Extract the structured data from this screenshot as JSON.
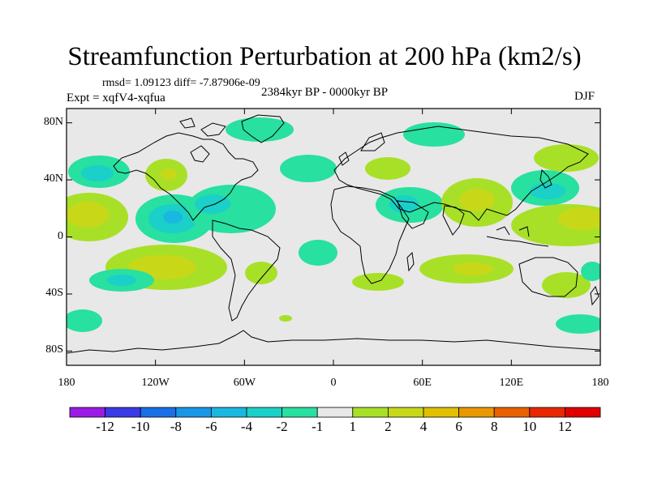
{
  "title": "Streamfunction Perturbation at 200 hPa (km2/s)",
  "stats": "rmsd= 1.09123 diff= -7.87906e-09",
  "expt": "Expt = xqfV4-xqfua",
  "period": "2384kyr BP - 0000kyr BP",
  "season": "DJF",
  "lat_ticks": [
    {
      "label": "80N",
      "value": 80
    },
    {
      "label": "40N",
      "value": 40
    },
    {
      "label": "0",
      "value": 0
    },
    {
      "label": "40S",
      "value": -40
    },
    {
      "label": "80S",
      "value": -80
    }
  ],
  "lon_ticks": [
    {
      "label": "180",
      "value": -180
    },
    {
      "label": "120W",
      "value": -120
    },
    {
      "label": "60W",
      "value": -60
    },
    {
      "label": "0",
      "value": 0
    },
    {
      "label": "60E",
      "value": 60
    },
    {
      "label": "120E",
      "value": 120
    },
    {
      "label": "180",
      "value": 180
    }
  ],
  "colorbar": {
    "labels": [
      "-12",
      "-10",
      "-8",
      "-6",
      "-4",
      "-2",
      "-1",
      "1",
      "2",
      "4",
      "6",
      "8",
      "10",
      "12"
    ],
    "colors": [
      "#9b1be4",
      "#3a3ae6",
      "#1a6fe6",
      "#1a96e6",
      "#1ab8e0",
      "#1ad0c8",
      "#28e0a0",
      "#e8e8e8",
      "#a8e028",
      "#c8d818",
      "#e0c000",
      "#e89800",
      "#e86000",
      "#e82800",
      "#e00000"
    ]
  }
}
